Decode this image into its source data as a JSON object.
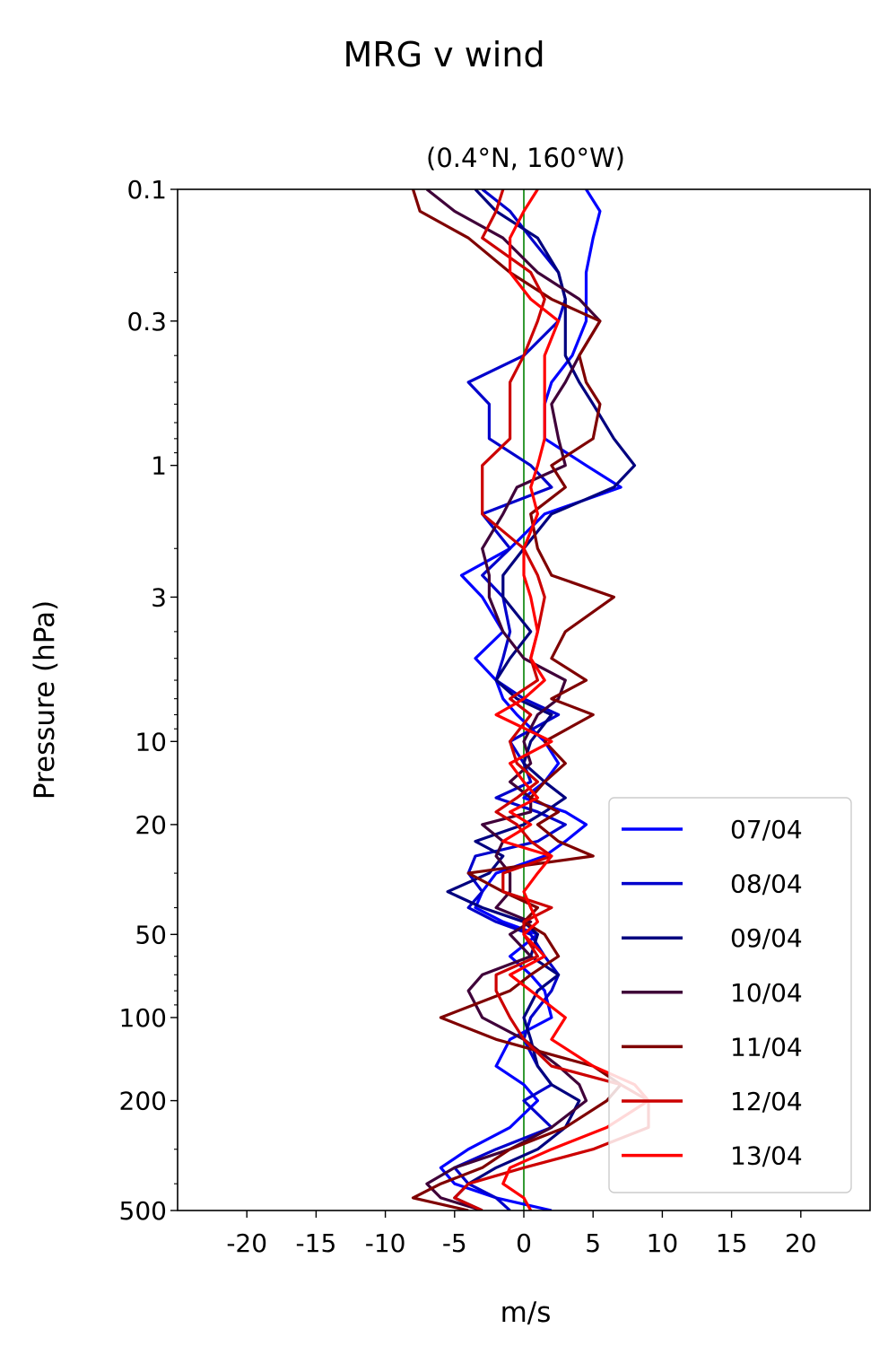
{
  "chart_data": {
    "type": "line",
    "title": "MRG v wind",
    "subtitle": "(0.4°N, 160°W)",
    "xlabel": "m/s",
    "ylabel": "Pressure (hPa)",
    "xlim": [
      -25,
      25
    ],
    "ylim": [
      500,
      0.1
    ],
    "yscale": "log",
    "y_inverted": true,
    "x_ticks": [
      -20,
      -15,
      -10,
      -5,
      0,
      5,
      10,
      15,
      20
    ],
    "x_tick_labels": [
      "-20",
      "-15",
      "-10",
      "-5",
      "0",
      "5",
      "10",
      "15",
      "20"
    ],
    "y_ticks": [
      0.1,
      0.3,
      1,
      3,
      10,
      20,
      50,
      100,
      200,
      500
    ],
    "y_tick_labels": [
      "0.1",
      "0.3",
      "1",
      "3",
      "10",
      "20",
      "50",
      "100",
      "200",
      "500"
    ],
    "grid": false,
    "legend_position": "bottom-right",
    "reference_line": {
      "x": 0,
      "color": "#008000"
    },
    "pressure_levels": [
      0.1,
      0.12,
      0.15,
      0.2,
      0.25,
      0.3,
      0.4,
      0.5,
      0.6,
      0.8,
      1.0,
      1.2,
      1.5,
      2.0,
      2.5,
      3.0,
      4.0,
      5.0,
      6.0,
      7.0,
      8.0,
      10,
      12,
      14,
      16,
      18,
      20,
      23,
      26,
      30,
      35,
      40,
      45,
      50,
      60,
      70,
      80,
      100,
      120,
      150,
      175,
      200,
      250,
      300,
      350,
      400,
      450,
      500
    ],
    "series": [
      {
        "name": "07/04",
        "color": "#0000ff",
        "values": [
          4.5,
          5.5,
          5,
          4.5,
          4.5,
          4.5,
          3.5,
          2,
          1.5,
          1.5,
          4.5,
          7,
          1.5,
          -1,
          -4.5,
          -3,
          -1.5,
          -3.5,
          -2,
          -1.5,
          -0.5,
          1.5,
          2.5,
          1.5,
          0,
          3,
          4.5,
          3,
          1.5,
          -2,
          -3,
          -3.5,
          -1.5,
          1,
          -1,
          0.5,
          1.5,
          2,
          -1,
          -2,
          0,
          1,
          -1,
          -4,
          -6,
          -5,
          -2,
          2
        ]
      },
      {
        "name": "08/04",
        "color": "#0000cc",
        "values": [
          -3,
          -1,
          0.5,
          2.5,
          3,
          2.5,
          0,
          -4,
          -2.5,
          -2.5,
          0.5,
          2,
          -3,
          -1,
          -3,
          -1.5,
          -1,
          -1.5,
          -2,
          0,
          2.5,
          -1,
          0,
          0.5,
          -2,
          1,
          3,
          1,
          -3.5,
          -4,
          -3,
          -4,
          -2,
          0.5,
          1.5,
          2.5,
          2,
          0.5,
          0,
          1,
          2,
          0,
          2,
          -2,
          -5,
          -4,
          -2,
          -1
        ]
      },
      {
        "name": "09/04",
        "color": "#00007f",
        "values": [
          -3.5,
          -2,
          1,
          2.5,
          3,
          3,
          3,
          4,
          5,
          6.5,
          8,
          6.5,
          2,
          0,
          -1.5,
          -1.5,
          0.5,
          -1,
          -2,
          -0.5,
          2,
          0.5,
          0,
          1.5,
          3,
          1.5,
          0,
          -3.5,
          -1.5,
          -2.5,
          -5.5,
          -3,
          0,
          1,
          0.5,
          2.5,
          1,
          0,
          0.5,
          1,
          2,
          4,
          3,
          1,
          -2,
          -4,
          -5,
          -3
        ]
      },
      {
        "name": "10/04",
        "color": "#3f0039",
        "values": [
          -7,
          -5,
          -1.5,
          1,
          4,
          5.5,
          4,
          3,
          2,
          2.5,
          3,
          -0.5,
          -1.5,
          -3,
          -2.5,
          -2.5,
          -1.5,
          0,
          3,
          2.5,
          1,
          0,
          0.5,
          -1,
          0.5,
          0.5,
          -3,
          -1.5,
          -2,
          -1,
          -1,
          -2,
          0.5,
          -1,
          0.5,
          -3,
          -4,
          -3,
          0,
          2.5,
          4,
          4.5,
          2,
          -1,
          -5,
          -7,
          -6,
          -3
        ]
      },
      {
        "name": "11/04",
        "color": "#7f0000",
        "values": [
          -8,
          -7.5,
          -4,
          -1,
          2,
          5.5,
          4,
          4.5,
          5.5,
          5,
          2,
          3,
          0.5,
          1,
          2,
          6.5,
          3,
          2,
          4.5,
          2,
          5,
          1.5,
          3,
          1.5,
          0.5,
          2.5,
          1,
          2.5,
          5,
          -4,
          -1.5,
          1,
          0,
          1.5,
          2.5,
          0.5,
          -1,
          -6,
          -2,
          5,
          7,
          6,
          3,
          -1,
          -3,
          -6,
          -8,
          -4
        ]
      },
      {
        "name": "12/04",
        "color": "#cc0000",
        "values": [
          -1.5,
          -2,
          -3,
          0.5,
          1.5,
          1,
          0,
          -1,
          -1,
          -1,
          -3,
          -3,
          -3,
          0,
          1,
          1.5,
          1,
          0.5,
          1,
          -1,
          0.5,
          -1,
          -0.5,
          1,
          -0.5,
          -2,
          -0.5,
          0.5,
          2,
          -1.5,
          -1.5,
          2,
          0,
          0,
          1,
          -2,
          -2,
          -1,
          0,
          2,
          7,
          9,
          9,
          5,
          0,
          -4,
          -5,
          -3
        ]
      },
      {
        "name": "13/04",
        "color": "#ff0000",
        "values": [
          1,
          0,
          -1,
          -1,
          0.5,
          2.5,
          1.5,
          1.5,
          1.5,
          1.5,
          1,
          0.5,
          1,
          0,
          0,
          0.5,
          1,
          0.5,
          1.5,
          0,
          -2,
          2,
          -1,
          0,
          1,
          -1,
          0.5,
          -1.5,
          2,
          1,
          0,
          0.5,
          1,
          0,
          1.5,
          -1,
          0.5,
          3,
          2,
          5,
          8,
          9,
          6,
          2,
          -1,
          -1.5,
          0,
          0.5
        ]
      }
    ]
  }
}
